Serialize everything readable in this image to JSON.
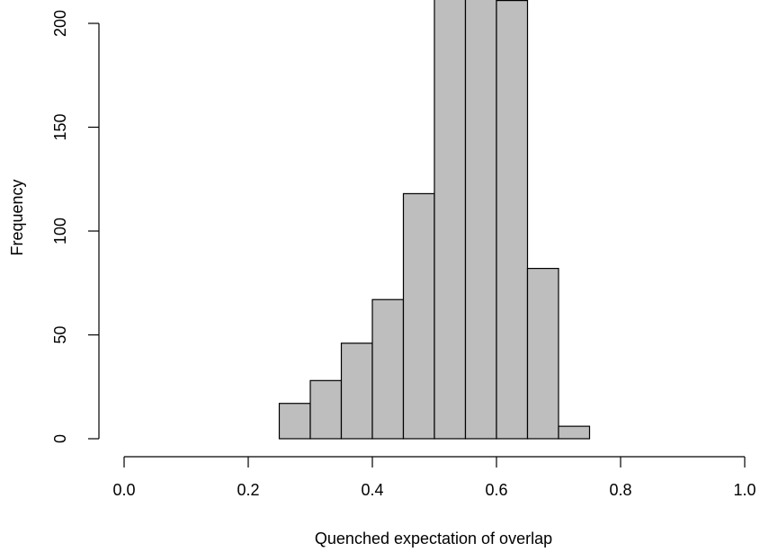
{
  "chart_data": {
    "type": "bar",
    "subtype": "histogram",
    "title": "",
    "xlabel": "Quenched expectation of overlap",
    "ylabel": "Frequency",
    "bin_edges": [
      0.25,
      0.3,
      0.35,
      0.4,
      0.45,
      0.5,
      0.55,
      0.6,
      0.65,
      0.7,
      0.75
    ],
    "values": [
      17,
      28,
      46,
      67,
      118,
      212,
      213,
      211,
      82,
      6
    ],
    "xlim": [
      0.0,
      1.0
    ],
    "ylim": [
      0,
      200
    ],
    "x_ticks": [
      0.0,
      0.2,
      0.4,
      0.6,
      0.8,
      1.0
    ],
    "x_tick_labels": [
      "0.0",
      "0.2",
      "0.4",
      "0.6",
      "0.8",
      "1.0"
    ],
    "y_ticks": [
      0,
      50,
      100,
      150,
      200
    ],
    "y_tick_labels": [
      "0",
      "50",
      "100",
      "150",
      "200"
    ],
    "bar_color": "#bebebe",
    "grid": false,
    "legend": "none"
  }
}
